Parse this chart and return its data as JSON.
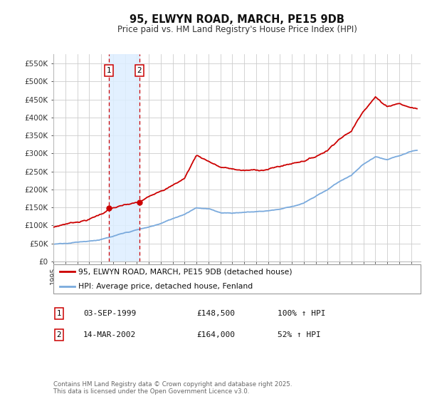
{
  "title": "95, ELWYN ROAD, MARCH, PE15 9DB",
  "subtitle": "Price paid vs. HM Land Registry's House Price Index (HPI)",
  "ylim": [
    0,
    577000
  ],
  "yticks": [
    0,
    50000,
    100000,
    150000,
    200000,
    250000,
    300000,
    350000,
    400000,
    450000,
    500000,
    550000
  ],
  "ytick_labels": [
    "£0",
    "£50K",
    "£100K",
    "£150K",
    "£200K",
    "£250K",
    "£300K",
    "£350K",
    "£400K",
    "£450K",
    "£500K",
    "£550K"
  ],
  "background_color": "#ffffff",
  "plot_bg_color": "#ffffff",
  "grid_color": "#cccccc",
  "sale1_date": 1999.67,
  "sale1_price": 148500,
  "sale2_date": 2002.21,
  "sale2_price": 164000,
  "legend_label_red": "95, ELWYN ROAD, MARCH, PE15 9DB (detached house)",
  "legend_label_blue": "HPI: Average price, detached house, Fenland",
  "table_row1": [
    "1",
    "03-SEP-1999",
    "£148,500",
    "100% ↑ HPI"
  ],
  "table_row2": [
    "2",
    "14-MAR-2002",
    "£164,000",
    "52% ↑ HPI"
  ],
  "footer": "Contains HM Land Registry data © Crown copyright and database right 2025.\nThis data is licensed under the Open Government Licence v3.0.",
  "red_color": "#cc0000",
  "blue_color": "#7aaadd",
  "shade_color": "#ddeeff",
  "red_xknots": [
    1995,
    1996,
    1997,
    1998,
    1999,
    1999.67,
    2000,
    2001,
    2002.21,
    2003,
    2004,
    2005,
    2006,
    2007,
    2008,
    2009,
    2010,
    2011,
    2012,
    2013,
    2014,
    2015,
    2016,
    2017,
    2018,
    2019,
    2020,
    2021,
    2022,
    2022.5,
    2023,
    2023.5,
    2024,
    2024.5,
    2025,
    2025.5
  ],
  "red_yknots": [
    95000,
    105000,
    112000,
    120000,
    135000,
    148500,
    152000,
    158000,
    164000,
    178000,
    200000,
    215000,
    235000,
    300000,
    285000,
    268000,
    262000,
    258000,
    258000,
    262000,
    270000,
    278000,
    288000,
    300000,
    320000,
    355000,
    375000,
    435000,
    475000,
    460000,
    450000,
    455000,
    460000,
    452000,
    448000,
    445000
  ],
  "blue_xknots": [
    1995,
    1996,
    1997,
    1998,
    1999,
    2000,
    2001,
    2002,
    2003,
    2004,
    2005,
    2006,
    2007,
    2008,
    2009,
    2010,
    2011,
    2012,
    2013,
    2014,
    2015,
    2016,
    2017,
    2018,
    2019,
    2020,
    2021,
    2022,
    2023,
    2024,
    2025,
    2025.5
  ],
  "blue_yknots": [
    48000,
    52000,
    56000,
    60000,
    65000,
    72000,
    80000,
    88000,
    95000,
    105000,
    118000,
    132000,
    152000,
    148000,
    138000,
    138000,
    140000,
    142000,
    145000,
    150000,
    158000,
    168000,
    185000,
    205000,
    228000,
    245000,
    275000,
    295000,
    285000,
    295000,
    305000,
    308000
  ]
}
